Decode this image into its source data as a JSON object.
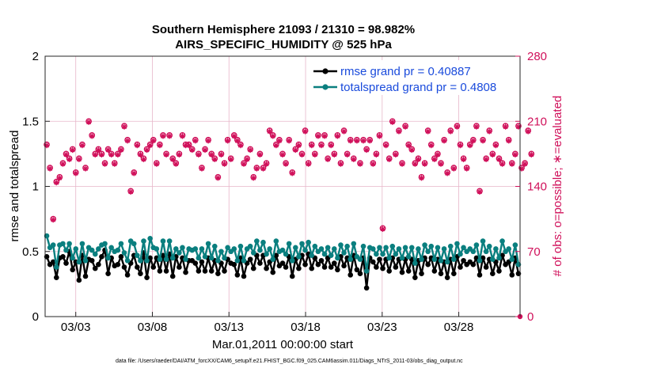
{
  "chart_data": {
    "type": "line",
    "title": [
      "Southern Hemisphere 21093 / 21310 = 98.982%",
      "AIRS_SPECIFIC_HUMIDITY @ 525 hPa"
    ],
    "xlabel": "Mar.01,2011 00:00:00 start",
    "ylabel_left": "rmse and totalspread",
    "ylabel_right": "# of obs: o=possible; ∗=evaluated",
    "ylim_left": [
      0,
      2
    ],
    "ylim_right": [
      0,
      280
    ],
    "yticks_left": [
      "0",
      "0.5",
      "1",
      "1.5",
      "2"
    ],
    "yticks_right": [
      "0",
      "70",
      "140",
      "210",
      "280"
    ],
    "xlim_days": [
      1.0,
      32.0
    ],
    "xticks": [
      {
        "day": 3,
        "label": "03/03"
      },
      {
        "day": 8,
        "label": "03/08"
      },
      {
        "day": 13,
        "label": "03/13"
      },
      {
        "day": 18,
        "label": "03/18"
      },
      {
        "day": 23,
        "label": "03/23"
      },
      {
        "day": 28,
        "label": "03/28"
      }
    ],
    "colors": {
      "rmse": "#000000",
      "spread": "#0a7f7f",
      "obs": "#d0105a",
      "legend_text": "#1a4bdc"
    },
    "series": [
      {
        "name": "rmse",
        "legend": "rmse grand pr = 0.40887",
        "values": [
          0.46,
          0.4,
          0.42,
          0.3,
          0.45,
          0.46,
          0.41,
          0.5,
          0.36,
          0.42,
          0.28,
          0.47,
          0.31,
          0.44,
          0.43,
          0.37,
          0.4,
          0.46,
          0.51,
          0.33,
          0.45,
          0.39,
          0.4,
          0.46,
          0.38,
          0.32,
          0.41,
          0.47,
          0.38,
          0.33,
          0.49,
          0.3,
          0.45,
          0.38,
          0.45,
          0.35,
          0.47,
          0.35,
          0.48,
          0.31,
          0.46,
          0.38,
          0.45,
          0.34,
          0.43,
          0.43,
          0.41,
          0.35,
          0.42,
          0.35,
          0.45,
          0.35,
          0.43,
          0.33,
          0.41,
          0.35,
          0.44,
          0.41,
          0.4,
          0.32,
          0.45,
          0.31,
          0.41,
          0.44,
          0.37,
          0.47,
          0.41,
          0.47,
          0.37,
          0.42,
          0.34,
          0.47,
          0.39,
          0.41,
          0.38,
          0.46,
          0.31,
          0.44,
          0.37,
          0.47,
          0.4,
          0.48,
          0.37,
          0.45,
          0.4,
          0.43,
          0.38,
          0.45,
          0.38,
          0.41,
          0.36,
          0.46,
          0.39,
          0.45,
          0.32,
          0.47,
          0.36,
          0.33,
          0.45,
          0.22,
          0.45,
          0.42,
          0.38,
          0.44,
          0.37,
          0.44,
          0.35,
          0.45,
          0.38,
          0.44,
          0.34,
          0.44,
          0.35,
          0.44,
          0.3,
          0.43,
          0.33,
          0.45,
          0.4,
          0.45,
          0.35,
          0.44,
          0.33,
          0.42,
          0.3,
          0.44,
          0.33,
          0.46,
          0.38,
          0.43,
          0.4,
          0.42,
          0.4,
          0.45,
          0.32,
          0.45,
          0.38,
          0.44,
          0.33,
          0.42,
          0.35,
          0.47,
          0.4,
          0.42,
          0.32,
          0.45,
          0.33
        ]
      },
      {
        "name": "totalspread",
        "legend": "totalspread grand pr = 0.4808",
        "values": [
          0.62,
          0.53,
          0.55,
          0.38,
          0.55,
          0.56,
          0.51,
          0.56,
          0.45,
          0.52,
          0.42,
          0.56,
          0.43,
          0.53,
          0.51,
          0.48,
          0.52,
          0.55,
          0.56,
          0.45,
          0.53,
          0.5,
          0.51,
          0.56,
          0.49,
          0.43,
          0.58,
          0.56,
          0.47,
          0.43,
          0.58,
          0.43,
          0.6,
          0.53,
          0.52,
          0.44,
          0.58,
          0.44,
          0.58,
          0.45,
          0.52,
          0.49,
          0.53,
          0.44,
          0.52,
          0.51,
          0.52,
          0.45,
          0.52,
          0.46,
          0.56,
          0.45,
          0.54,
          0.43,
          0.5,
          0.45,
          0.53,
          0.5,
          0.52,
          0.43,
          0.54,
          0.43,
          0.52,
          0.54,
          0.49,
          0.58,
          0.51,
          0.57,
          0.48,
          0.52,
          0.44,
          0.58,
          0.5,
          0.51,
          0.48,
          0.56,
          0.43,
          0.53,
          0.46,
          0.56,
          0.51,
          0.57,
          0.47,
          0.54,
          0.5,
          0.52,
          0.48,
          0.53,
          0.47,
          0.52,
          0.45,
          0.55,
          0.49,
          0.54,
          0.44,
          0.56,
          0.46,
          0.44,
          0.54,
          0.35,
          0.53,
          0.52,
          0.48,
          0.53,
          0.48,
          0.53,
          0.45,
          0.54,
          0.48,
          0.52,
          0.45,
          0.53,
          0.46,
          0.53,
          0.41,
          0.52,
          0.44,
          0.55,
          0.5,
          0.54,
          0.44,
          0.53,
          0.43,
          0.52,
          0.42,
          0.54,
          0.44,
          0.56,
          0.48,
          0.53,
          0.5,
          0.52,
          0.5,
          0.55,
          0.43,
          0.58,
          0.5,
          0.54,
          0.44,
          0.52,
          0.45,
          0.58,
          0.5,
          0.52,
          0.44,
          0.55,
          0.4
        ]
      },
      {
        "name": "observations",
        "possible": [
          185,
          160,
          105,
          145,
          150,
          165,
          175,
          170,
          180,
          155,
          170,
          185,
          160,
          210,
          195,
          175,
          180,
          175,
          165,
          180,
          175,
          165,
          175,
          180,
          205,
          190,
          135,
          155,
          185,
          175,
          170,
          180,
          185,
          190,
          165,
          185,
          195,
          175,
          195,
          170,
          165,
          175,
          195,
          185,
          185,
          180,
          190,
          175,
          160,
          180,
          190,
          175,
          170,
          150,
          175,
          165,
          190,
          170,
          195,
          190,
          185,
          165,
          170,
          180,
          150,
          160,
          175,
          160,
          165,
          200,
          195,
          185,
          190,
          175,
          165,
          190,
          155,
          180,
          185,
          175,
          200,
          165,
          185,
          175,
          195,
          185,
          195,
          170,
          185,
          175,
          195,
          165,
          200,
          175,
          190,
          170,
          190,
          165,
          190,
          180,
          190,
          165,
          175,
          195,
          95,
          185,
          170,
          210,
          175,
          200,
          165,
          205,
          185,
          180,
          165,
          170,
          150,
          165,
          200,
          185,
          170,
          175,
          165,
          190,
          155,
          200,
          160,
          205,
          185,
          170,
          160,
          185,
          190,
          205,
          135,
          190,
          170,
          200,
          175,
          185,
          170,
          165,
          205,
          190,
          165,
          175,
          205,
          160,
          165,
          200,
          175
        ]
      }
    ]
  },
  "footer": "data file: /Users/raeder/DAI/ATM_forcXX/CAM6_setup/f.e21.FHIST_BGC.f09_025.CAM6assim.011/Diags_NTrS_2011-03/obs_diag_output.nc"
}
